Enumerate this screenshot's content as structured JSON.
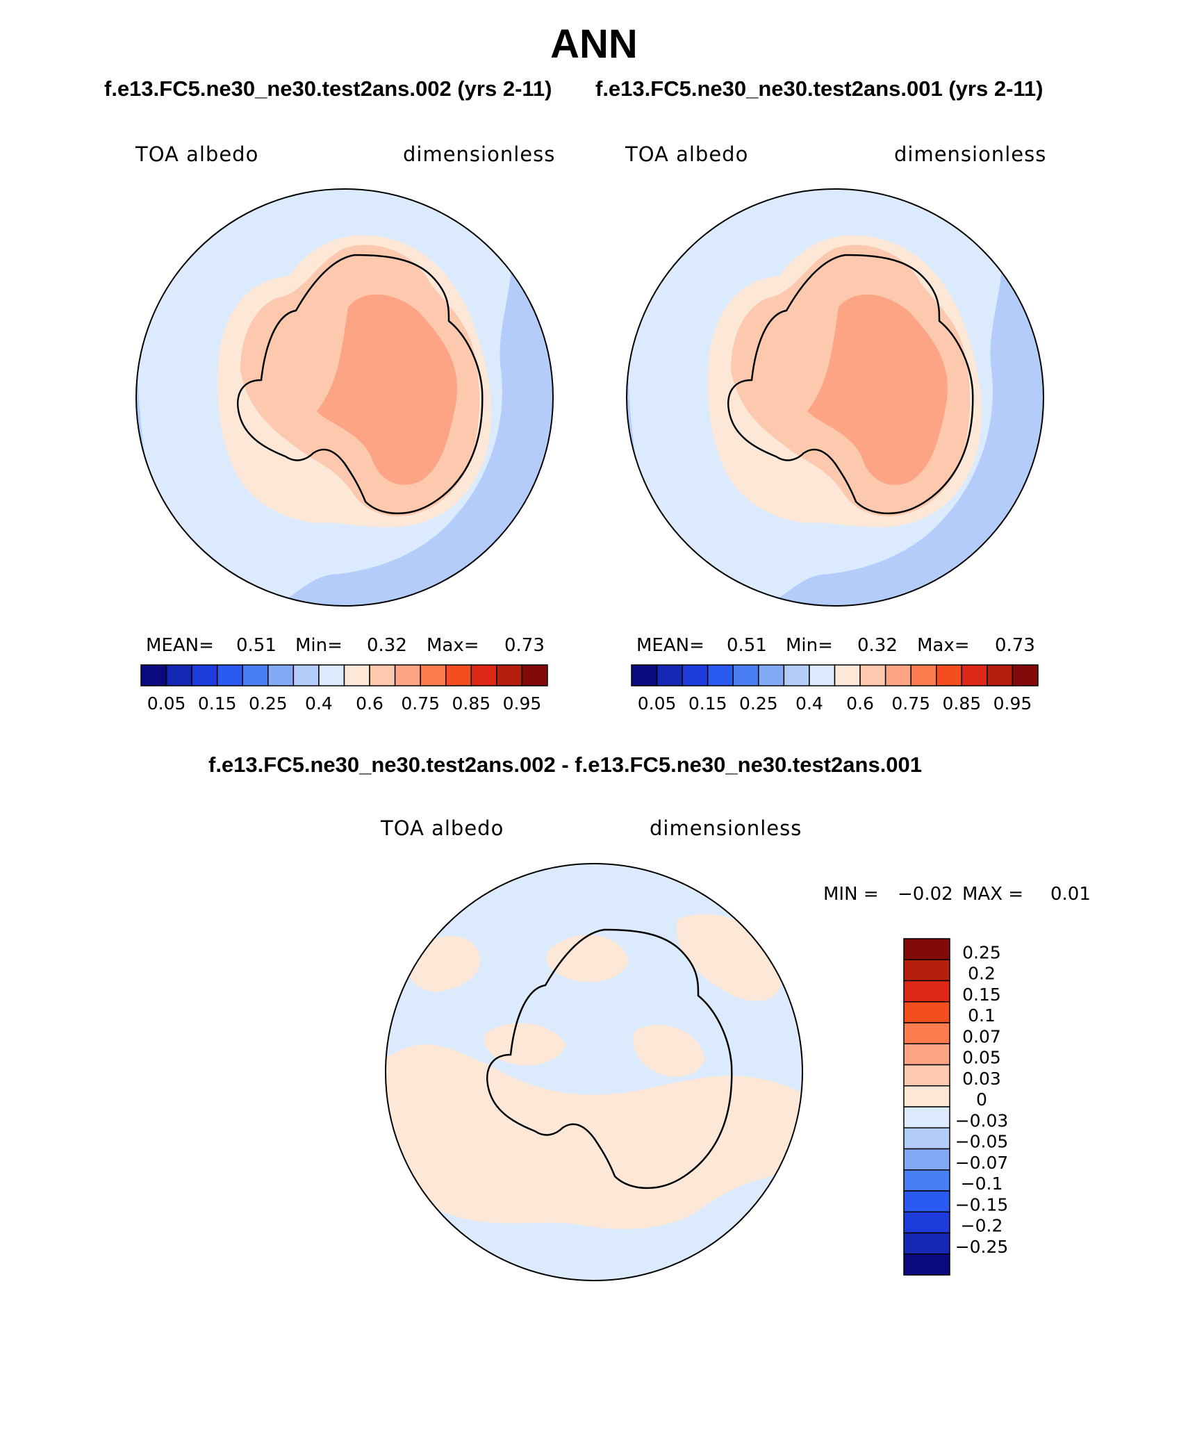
{
  "header": {
    "title": "ANN",
    "subtitle_left": "f.e13.FC5.ne30_ne30.test2ans.002 (yrs 2-11)",
    "subtitle_right": "f.e13.FC5.ne30_ne30.test2ans.001 (yrs 2-11)",
    "diff_title": "f.e13.FC5.ne30_ne30.test2ans.002 - f.e13.FC5.ne30_ne30.test2ans.001"
  },
  "panels": [
    {
      "variable": "TOA albedo",
      "units": "dimensionless",
      "stats": {
        "mean_label": "MEAN=",
        "mean": "0.51",
        "min_label": "Min=",
        "min": "0.32",
        "max_label": "Max=",
        "max": "0.73"
      }
    },
    {
      "variable": "TOA albedo",
      "units": "dimensionless",
      "stats": {
        "mean_label": "MEAN=",
        "mean": "0.51",
        "min_label": "Min=",
        "min": "0.32",
        "max_label": "Max=",
        "max": "0.73"
      }
    }
  ],
  "diff_panel": {
    "variable": "TOA albedo",
    "units": "dimensionless",
    "stats": {
      "min_label": "MIN =",
      "min": "−0.02",
      "max_label": "MAX =",
      "max": "0.01"
    }
  },
  "colorbar_main": {
    "colors": [
      "#0a0a80",
      "#1428b4",
      "#1e3cdc",
      "#2a5af0",
      "#4a7ef5",
      "#82aaf5",
      "#b4ccfa",
      "#dbeafc",
      "#fde8d8",
      "#fcc8ae",
      "#fca484",
      "#fc7c50",
      "#f54e1e",
      "#dc2814",
      "#b4200c",
      "#820a0a"
    ],
    "labels": [
      "0.05",
      "0.15",
      "0.25",
      "0.4",
      "0.6",
      "0.75",
      "0.85",
      "0.95"
    ]
  },
  "colorbar_diff": {
    "colors": [
      "#820a0a",
      "#b4200c",
      "#dc2814",
      "#f54e1e",
      "#fc7c50",
      "#fca484",
      "#fcc8ae",
      "#fde8d8",
      "#dbeafc",
      "#b4ccfa",
      "#82aaf5",
      "#4a7ef5",
      "#2a5af0",
      "#1e3cdc",
      "#1428b4",
      "#0a0a80"
    ],
    "labels": [
      "0.25",
      "0.2",
      "0.15",
      "0.1",
      "0.07",
      "0.05",
      "0.03",
      "0",
      "−0.03",
      "−0.05",
      "−0.07",
      "−0.1",
      "−0.15",
      "−0.2",
      "−0.25"
    ]
  },
  "map_colors": {
    "deep_ocean": "#b4ccfa",
    "ocean": "#dbeafc",
    "coast_band": "#fde8d8",
    "ice_sheet": "#fcc8ae",
    "plateau": "#fca484",
    "diff_negative": "#dbeafc",
    "diff_positive": "#fde8d8"
  }
}
